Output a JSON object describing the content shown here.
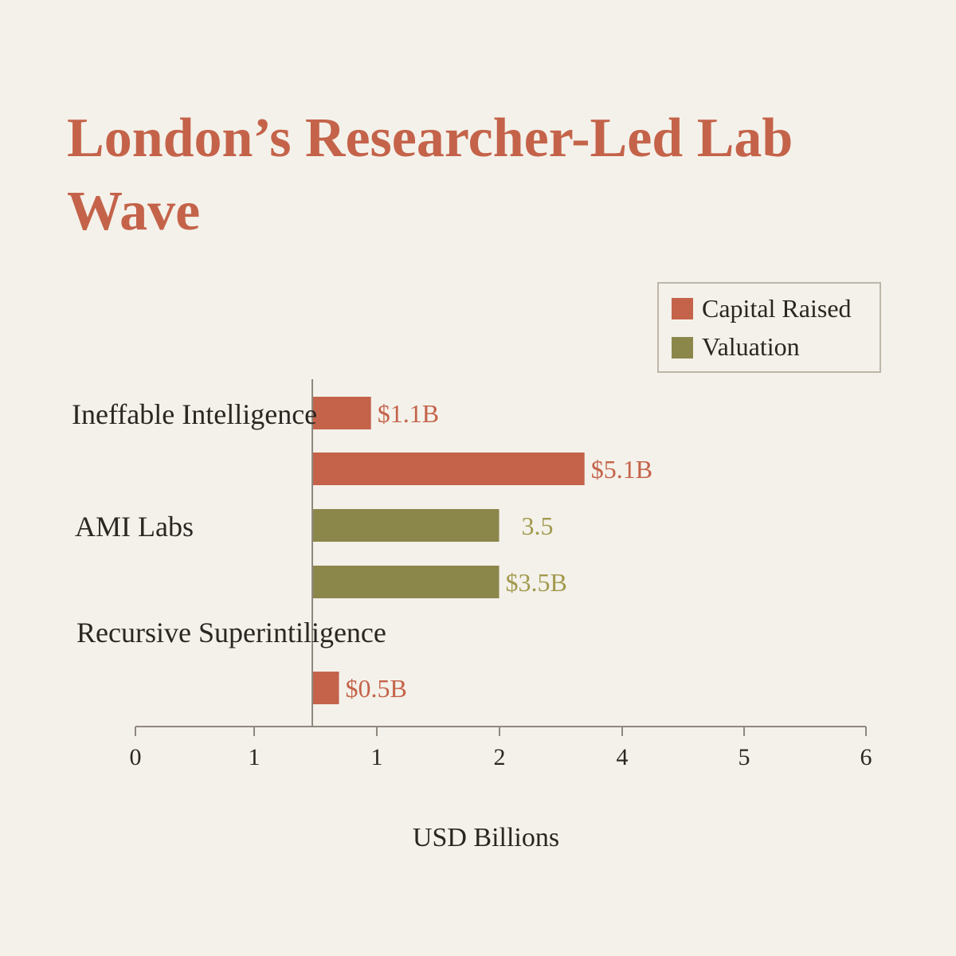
{
  "chart_data": {
    "type": "bar",
    "orientation": "horizontal",
    "title": "London’s Researcher-Led Lab Wave",
    "xlabel": "USD Billions",
    "x_tick_labels": [
      "0",
      "1",
      "1",
      "2",
      "4",
      "5",
      "6"
    ],
    "categories": [
      "Ineffable Intelligence",
      "AMI Labs",
      "Recursive Superintiligence"
    ],
    "series": [
      {
        "name": "Capital Raised",
        "color": "#c4634a"
      },
      {
        "name": "Valuation",
        "color": "#8b874b"
      }
    ],
    "bars": [
      {
        "series": "Capital Raised",
        "value": 1.1,
        "label": "$1.1B"
      },
      {
        "series": "Capital Raised",
        "value": 5.1,
        "label": "$5.1B"
      },
      {
        "series": "Valuation",
        "value": 3.5,
        "label": "3.5"
      },
      {
        "series": "Valuation",
        "value": 3.5,
        "label": "$3.5B"
      },
      {
        "series": "Capital Raised",
        "value": 0.5,
        "label": "$0.5B"
      }
    ],
    "legend_position": "top-right",
    "grid": false
  }
}
